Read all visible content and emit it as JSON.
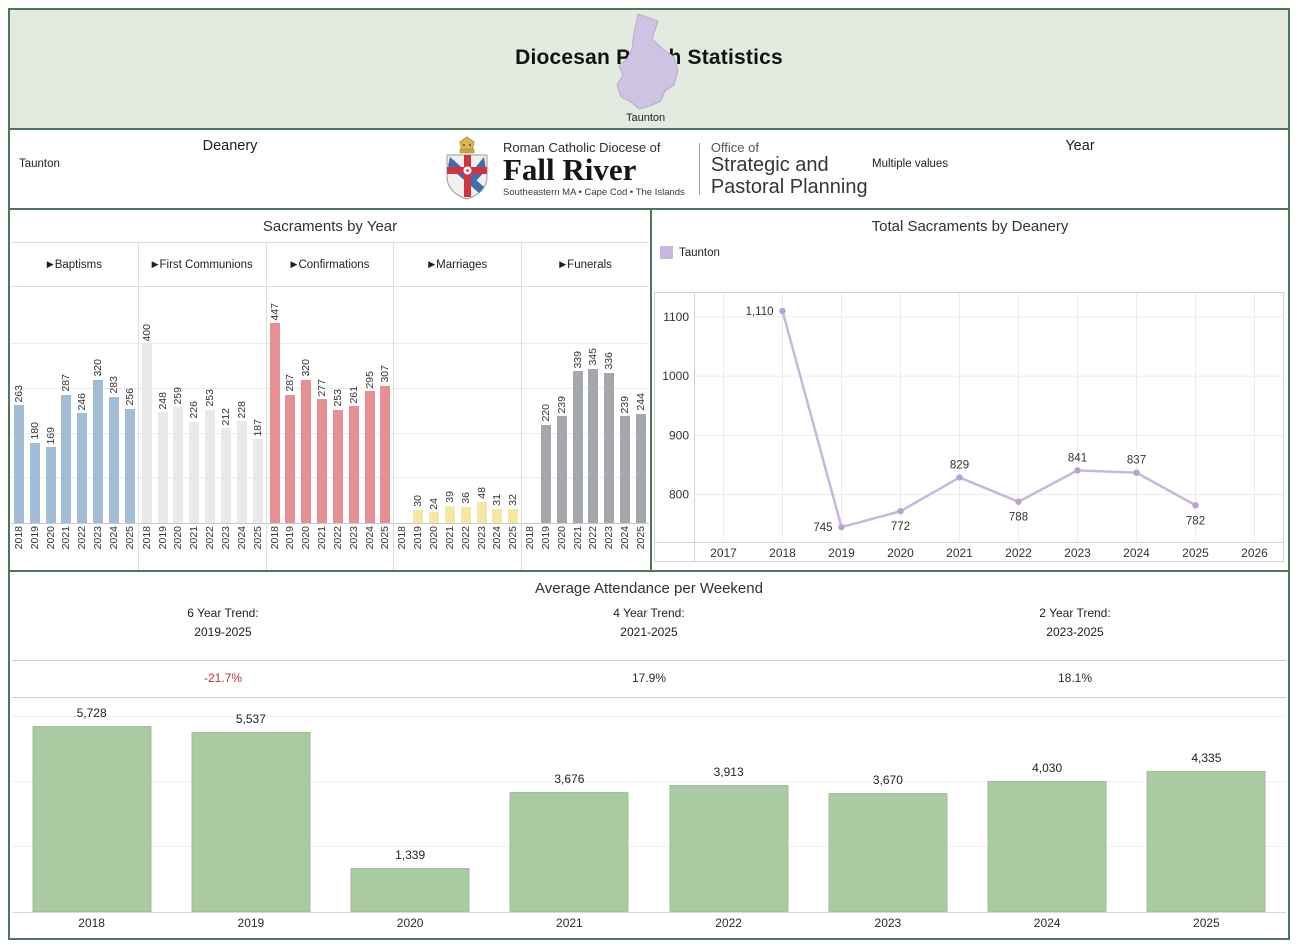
{
  "header": {
    "title": "Diocesan Parish Statistics",
    "map_label": "Taunton"
  },
  "filters": {
    "deanery_label": "Deanery",
    "deanery_value": "Taunton",
    "year_label": "Year",
    "year_value": "Multiple values"
  },
  "logo": {
    "diocese_small": "Roman Catholic Diocese of",
    "diocese_name": "Fall River",
    "diocese_tagline": "Southeastern MA • Cape Cod • The Islands",
    "office_line1": "Office of",
    "office_line2": "Strategic and",
    "office_line3": "Pastoral Planning"
  },
  "panels": {
    "sacraments": {
      "title": "Sacraments by Year",
      "group_arrow": "▶"
    },
    "totals": {
      "title": "Total Sacraments by Deanery",
      "legend": "Taunton"
    },
    "attendance": {
      "title": "Average Attendance per Weekend",
      "trends": [
        {
          "label": "6 Year Trend:",
          "range": "2019-2025",
          "value": "-21.7%",
          "color": "#bf2c46"
        },
        {
          "label": "4 Year Trend:",
          "range": "2021-2025",
          "value": "17.9%",
          "color": "#2a2a2a"
        },
        {
          "label": "2 Year Trend:",
          "range": "2023-2025",
          "value": "18.1%",
          "color": "#2a2a2a"
        }
      ]
    }
  },
  "colors": {
    "dashboard_border": "#4d7758",
    "header_background": "#e3ebe0",
    "map_fill": "#cfc3e3",
    "trend_negative": "#bf2c46"
  },
  "chart_data": [
    {
      "id": "sacraments_by_year",
      "type": "bar",
      "title": "Sacraments by Year",
      "categories": [
        "2018",
        "2019",
        "2020",
        "2021",
        "2022",
        "2023",
        "2024",
        "2025"
      ],
      "series": [
        {
          "name": "Baptisms",
          "color": "#a2bcd4",
          "values": [
            263,
            180,
            169,
            287,
            246,
            320,
            283,
            256
          ]
        },
        {
          "name": "First Communions",
          "color": "#e9e9e9",
          "values": [
            400,
            248,
            259,
            226,
            253,
            212,
            228,
            187
          ]
        },
        {
          "name": "Confirmations",
          "color": "#e69093",
          "values": [
            447,
            287,
            320,
            277,
            253,
            261,
            295,
            307
          ]
        },
        {
          "name": "Marriages",
          "color": "#f6e8a4",
          "values": [
            null,
            30,
            24,
            39,
            36,
            48,
            31,
            32
          ]
        },
        {
          "name": "Funerals",
          "color": "#a4a7ac",
          "values": [
            null,
            220,
            239,
            339,
            345,
            336,
            239,
            244
          ]
        }
      ],
      "ylabel": "",
      "ylim": [
        0,
        460
      ],
      "gridline_step": 100,
      "legend_position": "none"
    },
    {
      "id": "total_sacraments_by_deanery",
      "type": "line",
      "title": "Total Sacraments by Deanery",
      "x_ticks": [
        "2017",
        "2018",
        "2019",
        "2020",
        "2021",
        "2022",
        "2023",
        "2024",
        "2025",
        "2026"
      ],
      "y_ticks": [
        800,
        900,
        1000,
        1100
      ],
      "ylim": [
        720,
        1142
      ],
      "legend_position": "top-left",
      "series": [
        {
          "name": "Taunton",
          "color": "#c9b6e0",
          "marker_color": "#b7a2d6",
          "x": [
            2018,
            2019,
            2020,
            2021,
            2022,
            2023,
            2024,
            2025
          ],
          "values": [
            1110,
            745,
            772,
            829,
            788,
            841,
            837,
            782
          ],
          "labels": [
            "1,110",
            "745",
            "772",
            "829",
            "788",
            "841",
            "837",
            "782"
          ],
          "label_pos": [
            "left",
            "left",
            "below",
            "above",
            "below",
            "above",
            "above",
            "below"
          ]
        }
      ]
    },
    {
      "id": "average_attendance_per_weekend",
      "type": "bar",
      "title": "Average Attendance per Weekend",
      "categories": [
        "2018",
        "2019",
        "2020",
        "2021",
        "2022",
        "2023",
        "2024",
        "2025"
      ],
      "values": [
        5728,
        5537,
        1339,
        3676,
        3913,
        3670,
        4030,
        4335
      ],
      "labels": [
        "5,728",
        "5,537",
        "1,339",
        "3,676",
        "3,913",
        "3,670",
        "4,030",
        "4,335"
      ],
      "color": "#a9cba2",
      "ylim": [
        0,
        6520
      ],
      "gridlines": [
        2000,
        4000,
        6000
      ],
      "legend_position": "none"
    }
  ]
}
